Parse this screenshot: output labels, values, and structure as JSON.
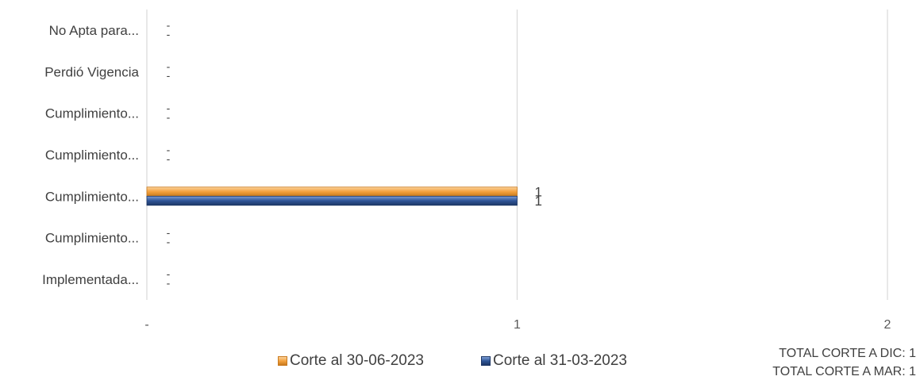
{
  "chart_data": {
    "type": "bar",
    "orientation": "horizontal",
    "categories": [
      "No Apta para...",
      "Perdió Vigencia",
      "Cumplimiento...",
      "Cumplimiento...",
      "Cumplimiento...",
      "Cumplimiento...",
      "Implementada..."
    ],
    "series": [
      {
        "name": "Corte al 30-06-2023",
        "color": "#F4A23E",
        "values": [
          0,
          0,
          0,
          0,
          1,
          0,
          0
        ]
      },
      {
        "name": "Corte al 31-03-2023",
        "color": "#2E5597",
        "values": [
          0,
          0,
          0,
          0,
          1,
          0,
          0
        ]
      }
    ],
    "xlim": [
      0,
      2
    ],
    "x_ticks": [
      "-",
      "1",
      "2"
    ],
    "zero_label": "-",
    "grid": true,
    "legend_position": "bottom"
  },
  "totals": {
    "line1": "TOTAL CORTE A DIC: 1",
    "line2": "TOTAL CORTE A MAR: 1"
  }
}
